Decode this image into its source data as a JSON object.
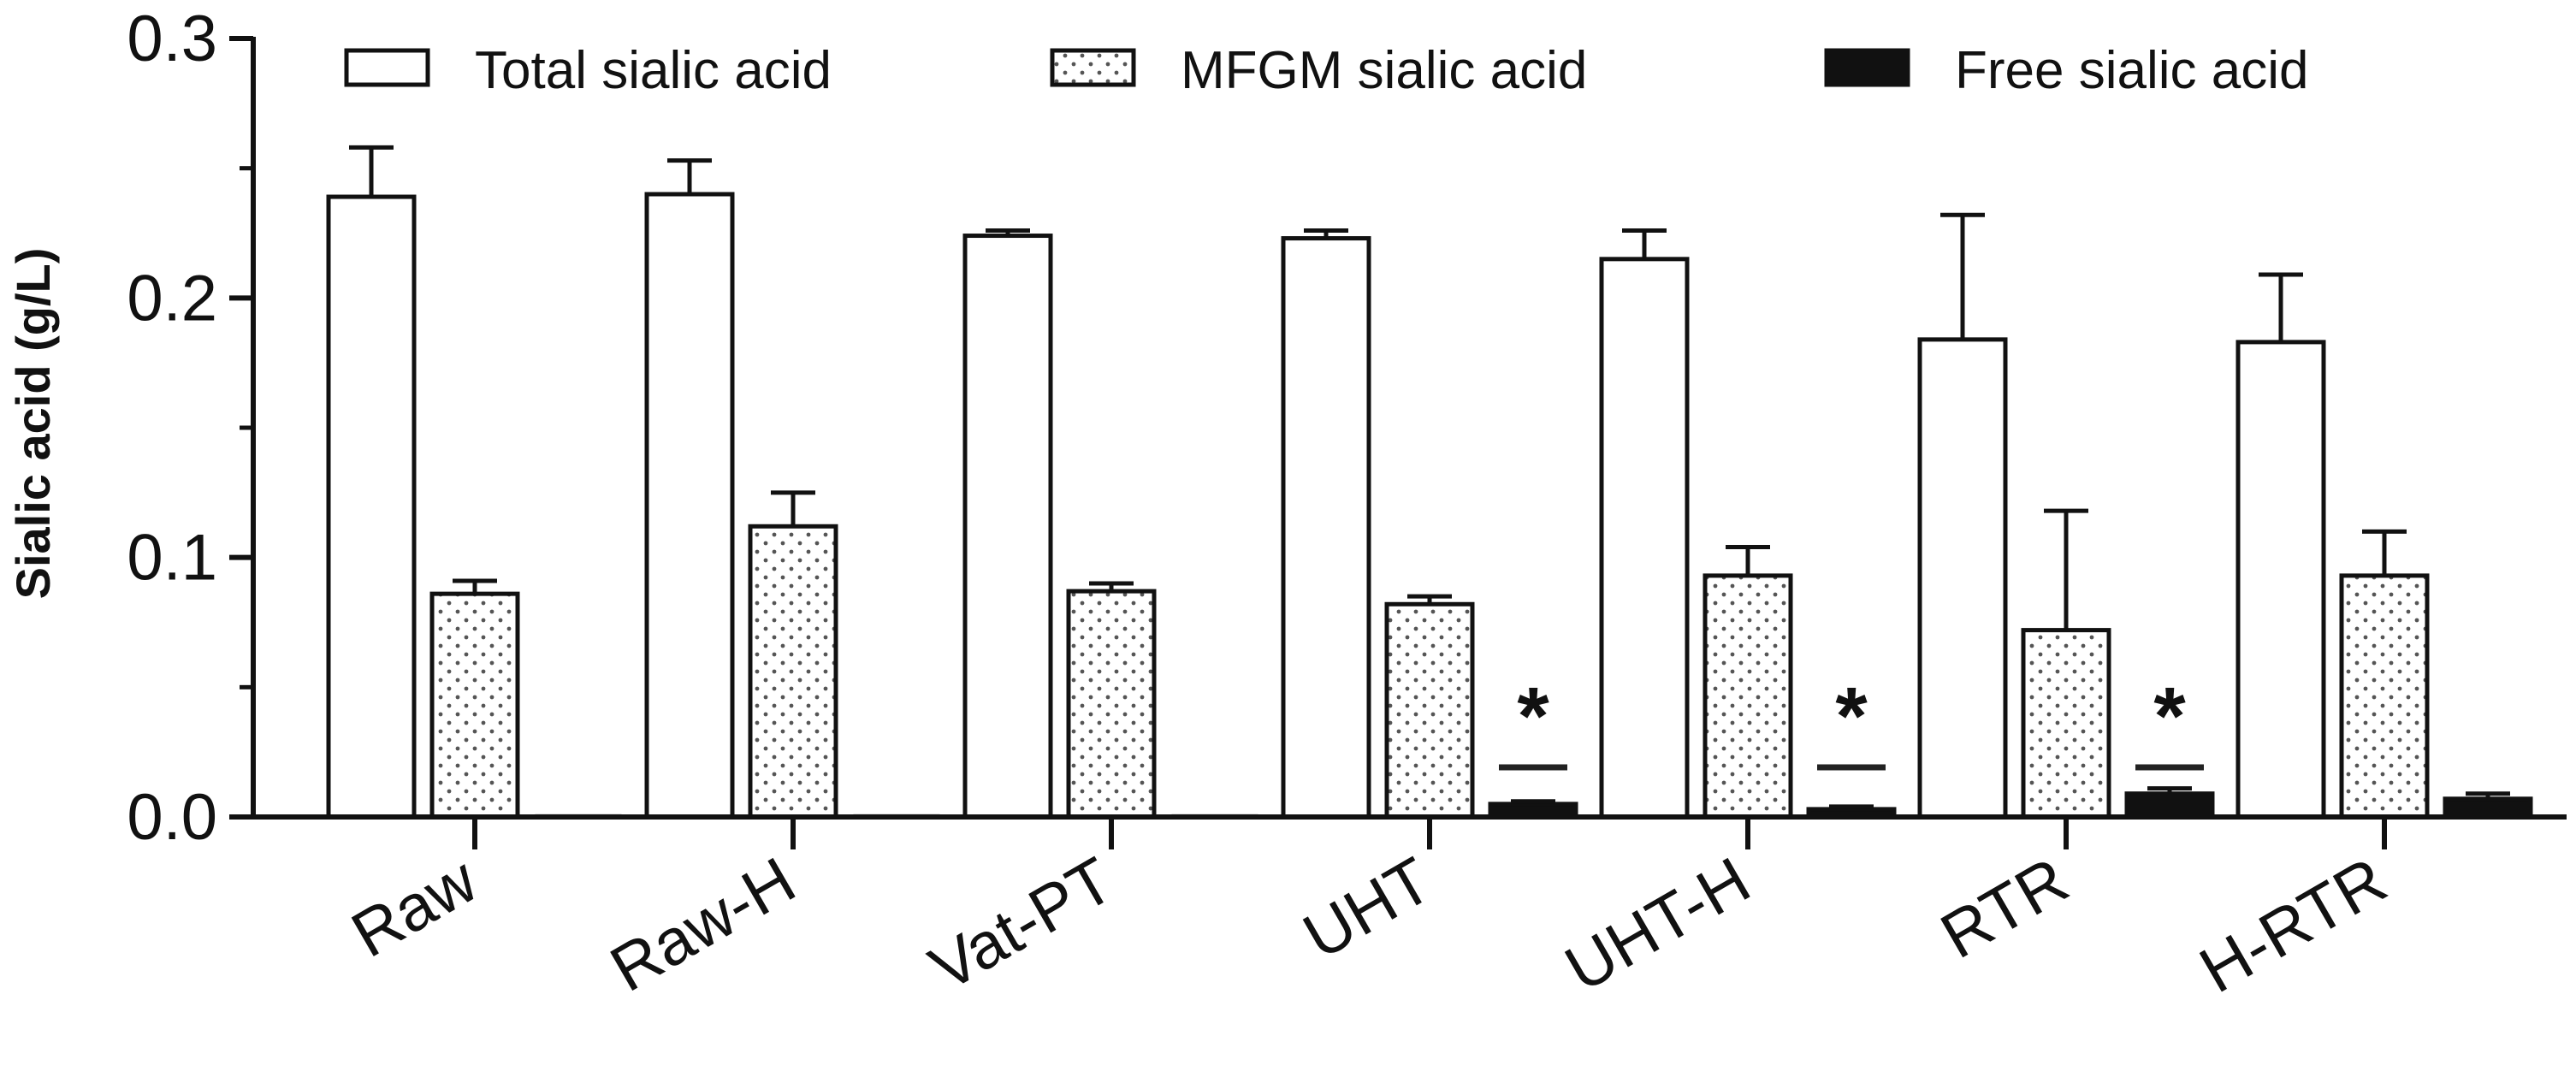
{
  "chart_data": {
    "type": "bar",
    "title": "",
    "xlabel": "",
    "ylabel": "Sialic acid (g/L)",
    "ylim": [
      0,
      0.3
    ],
    "yticks": [
      "0.0",
      "0.1",
      "0.2",
      "0.3"
    ],
    "yticks_values": [
      0,
      0.1,
      0.2,
      0.3
    ],
    "grid": false,
    "legend_position": "top",
    "categories": [
      "Raw",
      "Raw-H",
      "Vat-PT",
      "UHT",
      "UHT-H",
      "RTR",
      "H-RTR"
    ],
    "series": [
      {
        "name": "Total sialic acid",
        "fill": "#ffffff",
        "values": [
          0.239,
          0.24,
          0.224,
          0.223,
          0.215,
          0.184,
          0.183
        ],
        "errors": [
          0.019,
          0.013,
          0.002,
          0.003,
          0.011,
          0.048,
          0.026
        ]
      },
      {
        "name": "MFGM sialic acid",
        "fill": "#ffffff",
        "pattern": "dots",
        "values": [
          0.086,
          0.112,
          0.087,
          0.082,
          0.093,
          0.072,
          0.093
        ],
        "errors": [
          0.005,
          0.013,
          0.003,
          0.003,
          0.011,
          0.046,
          0.017
        ]
      },
      {
        "name": "Free sialic acid",
        "fill": "#111111",
        "values": [
          0.0,
          0.0,
          0.0,
          0.005,
          0.003,
          0.009,
          0.007
        ],
        "errors": [
          0.0,
          0.0,
          0.0,
          0.001,
          0.001,
          0.002,
          0.002
        ]
      }
    ],
    "annotations": [
      {
        "category": "UHT",
        "text": "*"
      },
      {
        "category": "UHT-H",
        "text": "*"
      },
      {
        "category": "RTR",
        "text": "*"
      }
    ],
    "colors": {
      "axis": "#111111",
      "bar_stroke": "#111111",
      "dot": "#555555"
    }
  }
}
